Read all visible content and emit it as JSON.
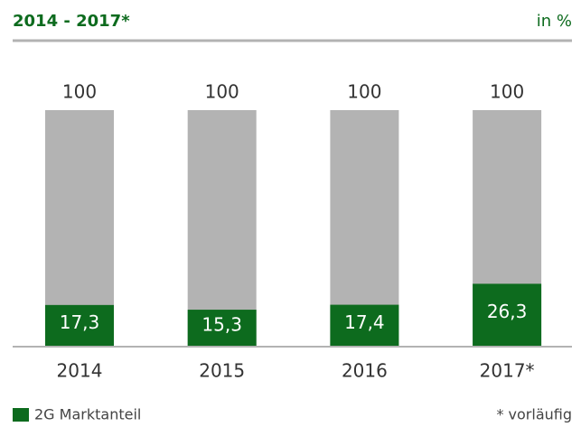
{
  "chart_data": {
    "type": "bar",
    "subtitle": "2014 - 2017*",
    "unit_note": "in %",
    "footnote": "* vorläufig",
    "categories": [
      "2014",
      "2015",
      "2016",
      "2017*"
    ],
    "ylim": [
      0,
      100
    ],
    "series": [
      {
        "color": "#b3b3b3",
        "values": [
          100,
          100,
          100,
          100
        ]
      },
      {
        "name": "2G Marktanteil",
        "color": "#0d6b1e",
        "values": [
          17.3,
          15.3,
          17.4,
          26.3
        ],
        "value_labels": [
          "17,3",
          "15,3",
          "17,4",
          "26,3"
        ]
      }
    ]
  }
}
